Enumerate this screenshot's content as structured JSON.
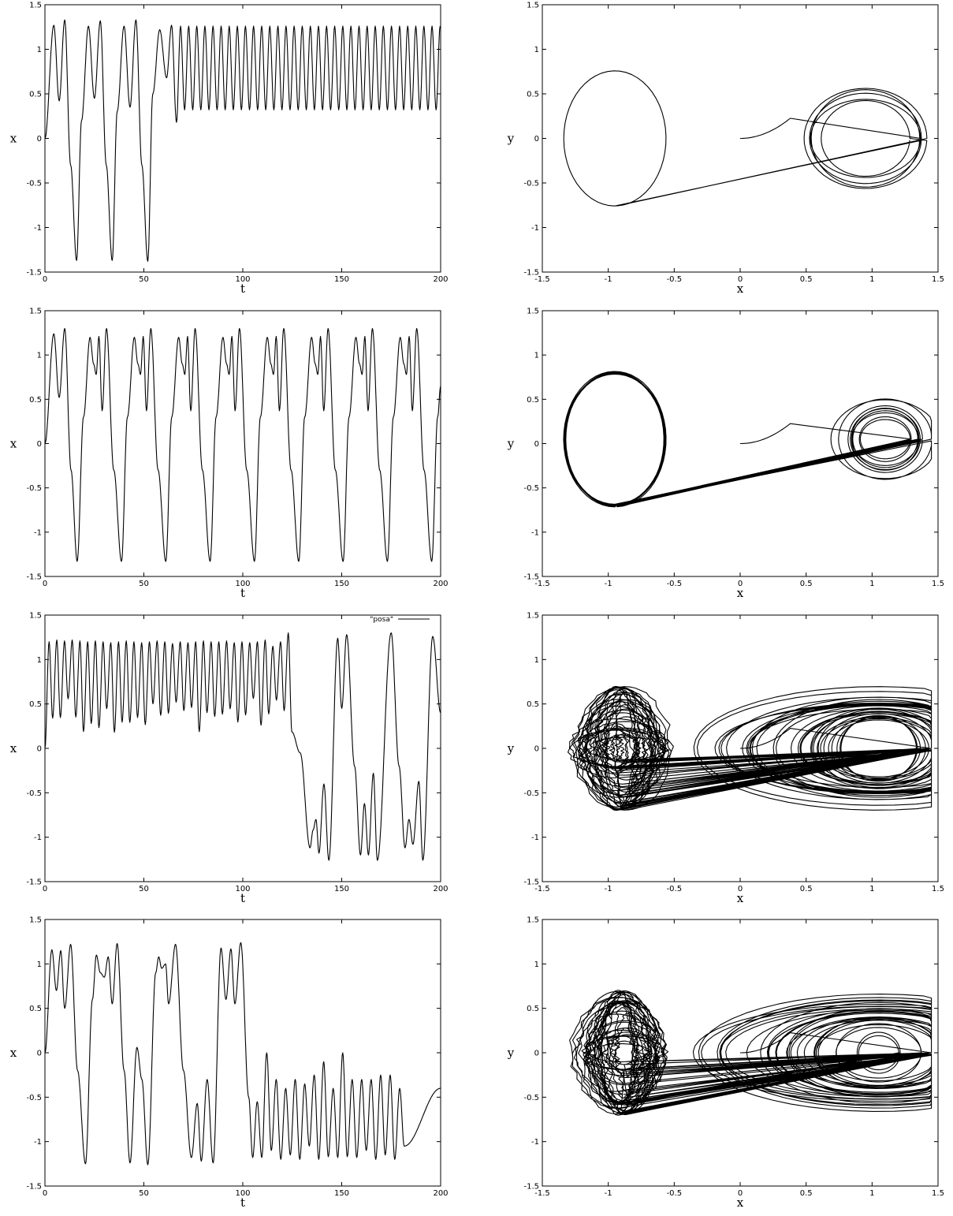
{
  "chart_data": [
    {
      "id": "r1-time",
      "type": "line",
      "xlabel": "t",
      "ylabel": "x",
      "xlim": [
        0,
        200
      ],
      "ylim": [
        -1.5,
        1.5
      ],
      "xticks": [
        "0",
        "50",
        "100",
        "150",
        "200"
      ],
      "yticks": [
        "-1.5",
        "-1",
        "-0.5",
        "0",
        "0.5",
        "1",
        "1.5"
      ],
      "legend": "",
      "series": [
        {
          "kind": "time",
          "transient_peaks": [
            1.27,
            1.33,
            1.26,
            1.32,
            1.26,
            1.33,
            1.22
          ],
          "transient_peak_t": [
            4.5,
            10,
            22,
            28,
            40,
            46,
            58
          ],
          "transient_troughs": [
            -1.37,
            -1.37,
            -1.38
          ],
          "transient_trough_t": [
            16,
            34,
            52
          ],
          "settle_t": 58,
          "osc_max": 1.26,
          "osc_min": 0.32,
          "osc_period": 4.1
        }
      ]
    },
    {
      "id": "r1-phase",
      "type": "line",
      "xlabel": "x",
      "ylabel": "y",
      "xlim": [
        -1.5,
        1.5
      ],
      "ylim": [
        -1.5,
        1.5
      ],
      "xticks": [
        "-1.5",
        "-1",
        "-0.5",
        "0",
        "0.5",
        "1",
        "1.5"
      ],
      "yticks": [
        "-1.5",
        "-1",
        "-0.5",
        "0",
        "0.5",
        "1",
        "1.5"
      ],
      "legend": "",
      "series": [
        {
          "kind": "phase",
          "left_loops": 3,
          "right_loops": 3,
          "inner_cycle_center": [
            0.85,
            0
          ],
          "inner_cycle_radius": [
            0.3,
            0.3
          ],
          "outer_center": [
            0.88,
            0
          ],
          "outer_radius": [
            0.42,
            0.68
          ]
        }
      ]
    },
    {
      "id": "r2-time",
      "type": "line",
      "xlabel": "t",
      "ylabel": "x",
      "xlim": [
        0,
        200
      ],
      "ylim": [
        -1.5,
        1.5
      ],
      "xticks": [
        "0",
        "50",
        "100",
        "150",
        "200"
      ],
      "yticks": [
        "-1.5",
        "-1",
        "-0.5",
        "0",
        "0.5",
        "1",
        "1.5"
      ],
      "legend": "",
      "series": [
        {
          "kind": "periodic",
          "period": 22.4,
          "peaks": [
            1.24,
            1.21,
            1.3
          ],
          "trough": -1.33,
          "dips": [
            0.52,
            0.78,
            0.37
          ]
        }
      ]
    },
    {
      "id": "r2-phase",
      "type": "line",
      "xlabel": "x",
      "ylabel": "y",
      "xlim": [
        -1.5,
        1.5
      ],
      "ylim": [
        -1.5,
        1.5
      ],
      "xticks": [
        "-1.5",
        "-1",
        "-0.5",
        "0",
        "0.5",
        "1",
        "1.5"
      ],
      "yticks": [
        "-1.5",
        "-1",
        "-0.5",
        "0",
        "0.5",
        "1",
        "1.5"
      ],
      "legend": "",
      "series": [
        {
          "kind": "phase",
          "left_loops": 9,
          "right_loops": 2,
          "inner_cycle_center": [
            1.0,
            0.05
          ],
          "inner_cycle_radius": [
            0.18,
            0.2
          ],
          "outer_center": [
            0.95,
            0
          ],
          "outer_radius": [
            0.35,
            0.55
          ]
        }
      ]
    },
    {
      "id": "r3-time",
      "type": "line",
      "xlabel": "t",
      "ylabel": "x",
      "xlim": [
        0,
        200
      ],
      "ylim": [
        -1.5,
        1.5
      ],
      "xticks": [
        "0",
        "50",
        "100",
        "150",
        "200"
      ],
      "yticks": [
        "-1.5",
        "-1",
        "-0.5",
        "0",
        "0.5",
        "1",
        "1.5"
      ],
      "legend": "\"posa\"",
      "series": [
        {
          "kind": "chaotic",
          "peaks": [
            1.2,
            1.22,
            1.21,
            1.22,
            1.21,
            1.2,
            1.21,
            1.2,
            1.19,
            1.2,
            1.21,
            1.2,
            1.19,
            1.2,
            1.21,
            1.2,
            1.18,
            1.2,
            1.19,
            1.2,
            1.21,
            1.2,
            1.2,
            1.21,
            1.19,
            1.2,
            1.19,
            1.2,
            1.22,
            1.15,
            1.2,
            1.3
          ],
          "switch_t": 125,
          "late_peaks": [
            1.24,
            1.28,
            1.3,
            1.26
          ],
          "late_troughs": [
            -1.12,
            -1.18,
            -1.25,
            -1.2,
            -1.26,
            -1.12,
            -1.26
          ]
        }
      ]
    },
    {
      "id": "r3-phase",
      "type": "line",
      "xlabel": "x",
      "ylabel": "y",
      "xlim": [
        -1.5,
        1.5
      ],
      "ylim": [
        -1.5,
        1.5
      ],
      "xticks": [
        "-1.5",
        "-1",
        "-0.5",
        "0",
        "0.5",
        "1",
        "1.5"
      ],
      "yticks": [
        "-1.5",
        "-1",
        "-0.5",
        "0",
        "0.5",
        "1",
        "1.5"
      ],
      "legend": "",
      "series": [
        {
          "kind": "phase",
          "left_loops": 18,
          "right_loops": 20,
          "inner_cycle_center": [
            0.95,
            0
          ],
          "inner_cycle_radius": [
            0.25,
            0.3
          ],
          "outer_center": [
            0.0,
            0
          ],
          "outer_radius": [
            1.25,
            0.75
          ]
        }
      ]
    },
    {
      "id": "r4-time",
      "type": "line",
      "xlabel": "t",
      "ylabel": "x",
      "xlim": [
        0,
        200
      ],
      "ylim": [
        -1.5,
        1.5
      ],
      "xticks": [
        "0",
        "50",
        "100",
        "150",
        "200"
      ],
      "yticks": [
        "-1.5",
        "-1",
        "-0.5",
        "0",
        "0.5",
        "1",
        "1.5"
      ],
      "legend": "",
      "series": [
        {
          "kind": "chaotic",
          "peaks": [
            1.16,
            1.15,
            1.22,
            1.1,
            1.08,
            1.23,
            1.1,
            1.0,
            1.22,
            1.18,
            1.17,
            1.24
          ],
          "troughs": [
            -1.25,
            -1.24,
            -1.26,
            -1.18,
            -1.24
          ],
          "late_start_t": 103,
          "late_peaks": [
            -0.55,
            0.0,
            -0.3,
            -0.4,
            -0.3,
            -0.35,
            -0.25,
            -0.1,
            -0.4,
            0.0,
            -0.3,
            -0.3,
            -0.3,
            -0.25,
            -0.25,
            -0.4
          ],
          "late_troughs": [
            -1.18,
            -1.1,
            -1.2,
            -1.15,
            -1.2,
            -1.05,
            -1.2,
            -1.17,
            -1.18,
            -1.17
          ]
        }
      ]
    },
    {
      "id": "r4-phase",
      "type": "line",
      "xlabel": "x",
      "ylabel": "y",
      "xlim": [
        -1.5,
        1.5
      ],
      "ylim": [
        -1.5,
        1.5
      ],
      "xticks": [
        "-1.5",
        "-1",
        "-0.5",
        "0",
        "0.5",
        "1",
        "1.5"
      ],
      "yticks": [
        "-1.5",
        "-1",
        "-0.5",
        "0",
        "0.5",
        "1",
        "1.5"
      ],
      "legend": "",
      "series": [
        {
          "kind": "phase",
          "left_loops": 20,
          "right_loops": 16,
          "inner_cycle_center": [
            0.95,
            0
          ],
          "inner_cycle_radius": [
            0.15,
            0.2
          ],
          "outer_center": [
            0.0,
            0
          ],
          "outer_radius": [
            1.25,
            0.78
          ]
        }
      ]
    }
  ]
}
